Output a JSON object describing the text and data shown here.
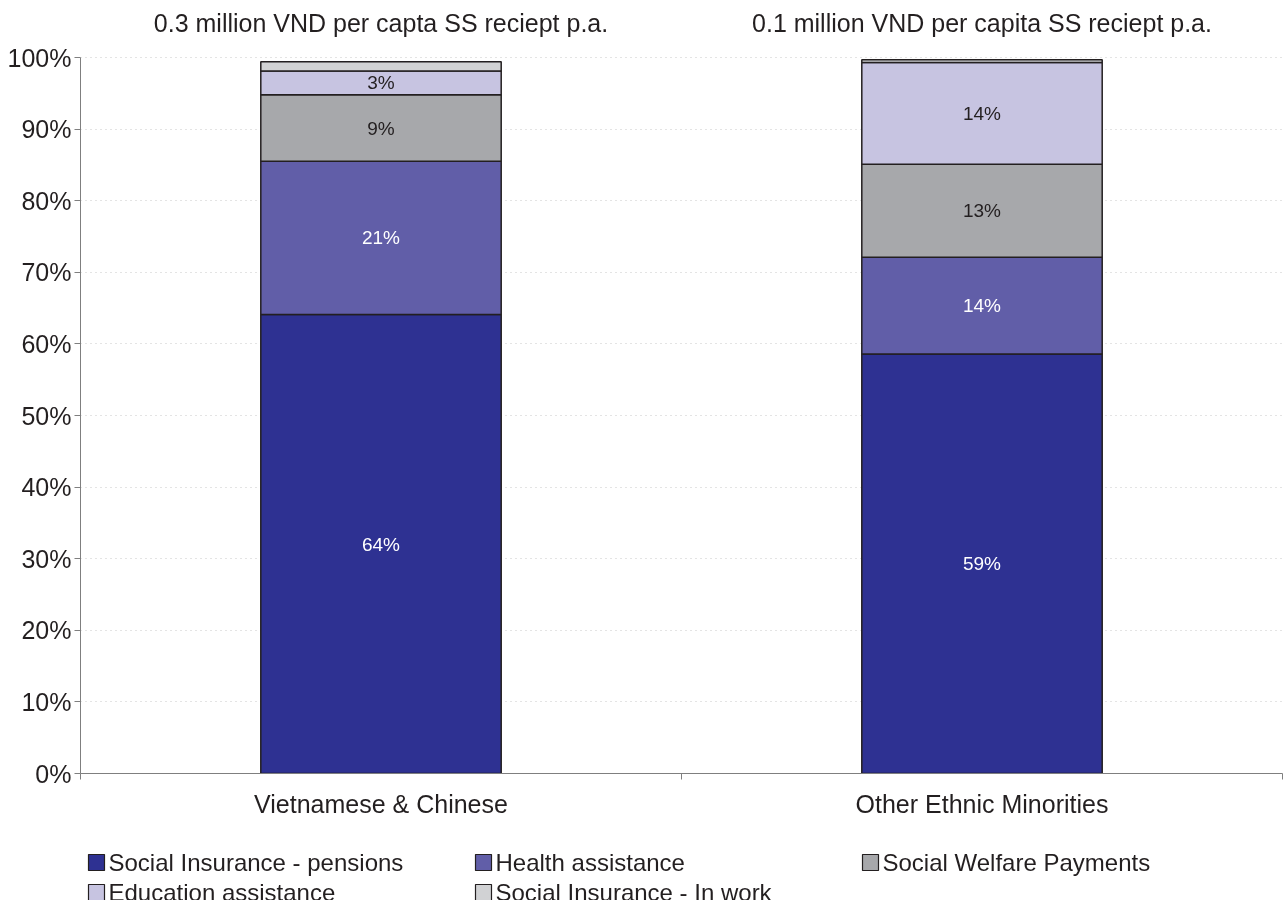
{
  "chart_data": {
    "type": "bar",
    "stacked": true,
    "categories": [
      "Vietnamese & Chinese",
      "Other Ethnic Minorities"
    ],
    "series": [
      {
        "name": "Social Insurance - pensions",
        "color": "#2e3192",
        "values": [
          64.1,
          58.6
        ],
        "value_labels": [
          "64%",
          "59%"
        ]
      },
      {
        "name": "Health assistance",
        "color": "#615ea8",
        "values": [
          21.4,
          13.5
        ],
        "value_labels": [
          "21%",
          "14%"
        ]
      },
      {
        "name": "Social Welfare Payments",
        "color": "#a7a8ab",
        "values": [
          9.3,
          13.0
        ],
        "value_labels": [
          "9%",
          "13%"
        ]
      },
      {
        "name": "Education assistance",
        "color": "#c7c4e1",
        "values": [
          3.3,
          14.2
        ],
        "value_labels": [
          "3%",
          "14%"
        ]
      },
      {
        "name": "Social Insurance - In work",
        "color": "#d1d2d4",
        "values": [
          1.3,
          0.4
        ],
        "value_labels": [
          null,
          null
        ]
      }
    ],
    "ylim": [
      0,
      100
    ],
    "yticks": [
      {
        "value": 0,
        "label": "0%"
      },
      {
        "value": 10,
        "label": "10%"
      },
      {
        "value": 20,
        "label": "20%"
      },
      {
        "value": 30,
        "label": "30%"
      },
      {
        "value": 40,
        "label": "40%"
      },
      {
        "value": 50,
        "label": "50%"
      },
      {
        "value": 60,
        "label": "60%"
      },
      {
        "value": 70,
        "label": "70%"
      },
      {
        "value": 80,
        "label": "80%"
      },
      {
        "value": 90,
        "label": "90%"
      },
      {
        "value": 100,
        "label": "100%"
      }
    ],
    "grid": "y",
    "legend": "bottom",
    "annotations": [
      "0.3 million VND per capta SS reciept p.a.",
      "0.1 million VND per capita SS reciept p.a."
    ]
  }
}
